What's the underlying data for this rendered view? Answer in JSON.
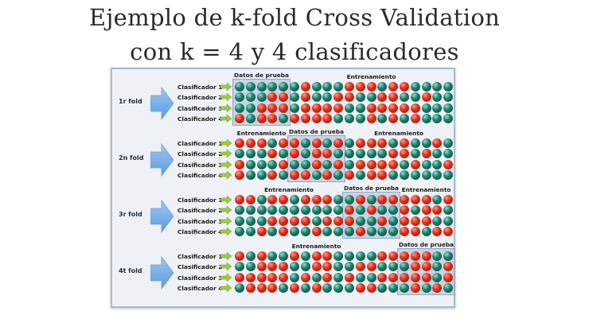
{
  "title": {
    "line1": "Ejemplo de k-fold Cross Validation",
    "line2": "con k = 4 y 4 clasificadores"
  },
  "labels": {
    "test_data": "Datos de prueba",
    "training": "Entrenamiento"
  },
  "classifiers": [
    "Clasificador 1",
    "Clasificador 2",
    "Clasificador 3",
    "Clasificador 4"
  ],
  "folds": [
    {
      "label": "1r fold",
      "test_block": 0
    },
    {
      "label": "2n fold",
      "test_block": 1
    },
    {
      "label": "3r fold",
      "test_block": 2
    },
    {
      "label": "4t fold",
      "test_block": 3
    }
  ],
  "grid": {
    "balls_per_row": 20,
    "block_size": 5
  },
  "colors": {
    "red_ball": "#e0301c",
    "green_ball": "#1f7f6c",
    "big_arrow": "#5d9be0",
    "small_arrow": "#9ccd3c",
    "test_box": "#8ca4c4",
    "panel_border": "#a9bbd0"
  },
  "icons": {
    "fold_arrow": "right-arrow-icon",
    "classifier_arrow": "small-right-arrow-icon",
    "sample": "ball-icon"
  }
}
